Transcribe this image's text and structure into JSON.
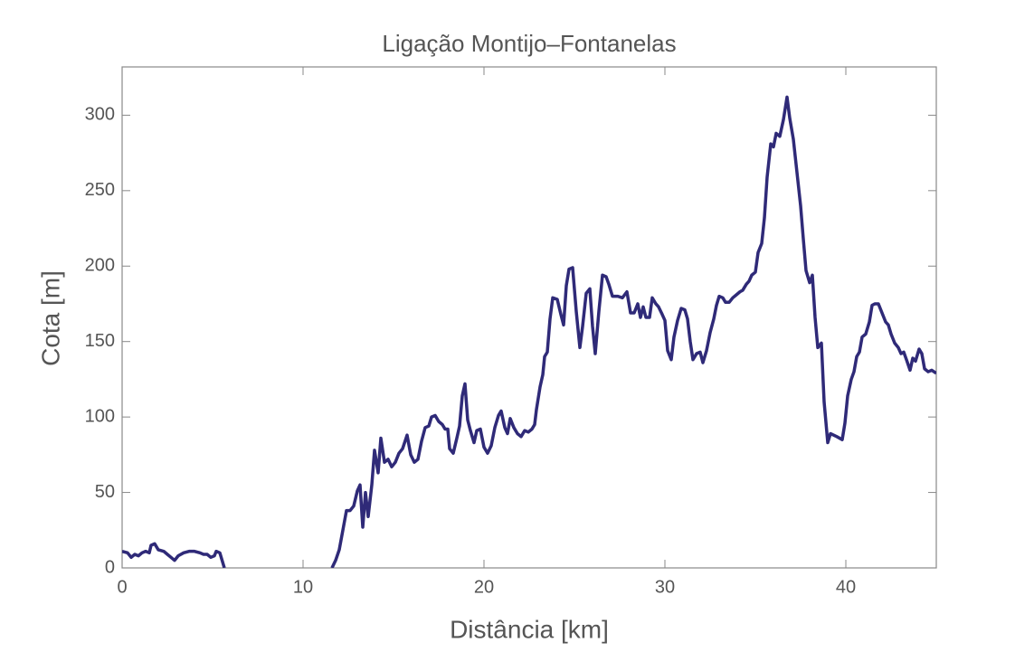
{
  "chart_data": {
    "type": "line",
    "title": "Ligação Montijo–Fontanelas",
    "x_label": "Distância [km]",
    "y_label": "Cota [m]",
    "x": [
      0,
      0.3,
      0.5,
      0.7,
      0.9,
      1.1,
      1.3,
      1.5,
      1.6,
      1.8,
      2.0,
      2.3,
      2.5,
      2.7,
      2.9,
      3.1,
      3.4,
      3.7,
      4.0,
      4.3,
      4.5,
      4.7,
      4.9,
      5.1,
      5.2,
      5.4,
      5.6,
      5.65,
      8.6,
      11.6,
      11.8,
      12.0,
      12.2,
      12.4,
      12.6,
      12.8,
      13.0,
      13.15,
      13.3,
      13.45,
      13.6,
      13.8,
      13.95,
      14.15,
      14.3,
      14.5,
      14.7,
      14.9,
      15.1,
      15.3,
      15.5,
      15.75,
      15.95,
      16.15,
      16.35,
      16.55,
      16.75,
      16.95,
      17.1,
      17.3,
      17.5,
      17.7,
      17.85,
      18.0,
      18.1,
      18.3,
      18.5,
      18.65,
      18.8,
      18.95,
      19.1,
      19.25,
      19.45,
      19.6,
      19.8,
      20.0,
      20.2,
      20.4,
      20.6,
      20.8,
      20.95,
      21.15,
      21.3,
      21.45,
      21.65,
      21.85,
      22.05,
      22.25,
      22.45,
      22.65,
      22.8,
      22.9,
      23.1,
      23.25,
      23.35,
      23.5,
      23.65,
      23.8,
      24.05,
      24.25,
      24.4,
      24.55,
      24.7,
      24.9,
      25.1,
      25.3,
      25.45,
      25.65,
      25.85,
      26.0,
      26.15,
      26.35,
      26.55,
      26.75,
      26.9,
      27.1,
      27.4,
      27.65,
      27.9,
      28.1,
      28.3,
      28.5,
      28.65,
      28.8,
      28.95,
      29.15,
      29.3,
      29.5,
      29.65,
      29.85,
      30.0,
      30.15,
      30.35,
      30.5,
      30.7,
      30.9,
      31.1,
      31.25,
      31.4,
      31.55,
      31.75,
      31.95,
      32.1,
      32.3,
      32.5,
      32.7,
      32.85,
      33.0,
      33.2,
      33.35,
      33.55,
      33.75,
      33.95,
      34.15,
      34.3,
      34.5,
      34.65,
      34.8,
      35.0,
      35.15,
      35.35,
      35.5,
      35.65,
      35.85,
      36.0,
      36.15,
      36.35,
      36.55,
      36.75,
      36.9,
      37.1,
      37.3,
      37.5,
      37.65,
      37.8,
      38.0,
      38.15,
      38.3,
      38.45,
      38.65,
      38.8,
      39.0,
      39.15,
      39.5,
      39.8,
      39.95,
      40.1,
      40.3,
      40.45,
      40.6,
      40.75,
      40.9,
      41.1,
      41.3,
      41.45,
      41.6,
      41.8,
      42.0,
      42.2,
      42.35,
      42.5,
      42.7,
      42.9,
      43.05,
      43.2,
      43.35,
      43.55,
      43.7,
      43.85,
      44.05,
      44.2,
      44.35,
      44.55,
      44.75,
      45.0
    ],
    "series": [
      {
        "color": "#2f2a78",
        "values": [
          11,
          10,
          7,
          9,
          8,
          10,
          11,
          10,
          15,
          16,
          12,
          11,
          9,
          7,
          5,
          8,
          10,
          11,
          11,
          10,
          9,
          9,
          7,
          8,
          11,
          10,
          2,
          0,
          null,
          0,
          5,
          12,
          25,
          38,
          38,
          41,
          51,
          55,
          27,
          50,
          34,
          55,
          78,
          63,
          86,
          70,
          72,
          67,
          70,
          76,
          79,
          88,
          75,
          70,
          72,
          84,
          93,
          94,
          100,
          101,
          97,
          95,
          92,
          92,
          79,
          76,
          86,
          94,
          114,
          122,
          98,
          91,
          83,
          91,
          92,
          80,
          76,
          81,
          93,
          101,
          104,
          93,
          89,
          99,
          93,
          89,
          87,
          91,
          90,
          92,
          95,
          105,
          120,
          128,
          140,
          143,
          165,
          179,
          178,
          168,
          161,
          187,
          198,
          199,
          170,
          146,
          160,
          182,
          185,
          160,
          142,
          170,
          194,
          193,
          188,
          180,
          180,
          179,
          183,
          169,
          169,
          175,
          166,
          173,
          166,
          166,
          179,
          175,
          173,
          168,
          164,
          144,
          138,
          153,
          164,
          172,
          171,
          165,
          150,
          138,
          142,
          143,
          136,
          144,
          156,
          165,
          174,
          180,
          179,
          176,
          176,
          179,
          181,
          183,
          184,
          188,
          190,
          194,
          196,
          209,
          215,
          232,
          259,
          281,
          279,
          288,
          286,
          297,
          312,
          298,
          284,
          262,
          240,
          218,
          197,
          189,
          194,
          166,
          146,
          149,
          110,
          83,
          89,
          87,
          85,
          96,
          114,
          125,
          130,
          140,
          143,
          153,
          155,
          163,
          174,
          175,
          175,
          169,
          163,
          161,
          155,
          149,
          146,
          142,
          143,
          138,
          131,
          139,
          137,
          145,
          142,
          132,
          130,
          131,
          129
        ]
      }
    ],
    "xlim": [
      0,
      45
    ],
    "ylim": [
      0,
      332
    ],
    "xticks": [
      0,
      10,
      20,
      30,
      40
    ],
    "yticks": [
      0,
      50,
      100,
      150,
      200,
      250,
      300
    ]
  }
}
